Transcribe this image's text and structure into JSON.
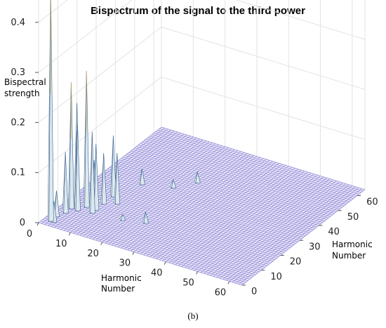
{
  "panel_label": "(b)",
  "chart_data": {
    "type": "surface3d",
    "title": "Bispectrum of the signal to the third power",
    "zlabel_lines": [
      "Bispectral",
      "strength"
    ],
    "xlabel_lines": [
      "Harmonic",
      "Number"
    ],
    "ylabel_lines": [
      "Harmonic",
      "Number"
    ],
    "xlim": [
      0,
      64
    ],
    "ylim": [
      0,
      64
    ],
    "zlim": [
      0,
      0.45
    ],
    "x_ticks": [
      0,
      10,
      20,
      30,
      40,
      50,
      60
    ],
    "y_ticks": [
      0,
      10,
      20,
      30,
      40,
      50,
      60
    ],
    "z_ticks": [
      0,
      0.1,
      0.2,
      0.3,
      0.4
    ],
    "grid": true,
    "surface_color": "#8e86d8",
    "peak_color": "#f2f2ea",
    "peaks": [
      {
        "x": 2,
        "y": 3,
        "z": 0.46
      },
      {
        "x": 3,
        "y": 3,
        "z": 0.04
      },
      {
        "x": 2,
        "y": 6,
        "z": 0.05
      },
      {
        "x": 3,
        "y": 9,
        "z": 0.12
      },
      {
        "x": 3,
        "y": 12,
        "z": 0.25
      },
      {
        "x": 3,
        "y": 15,
        "z": 0.2
      },
      {
        "x": 5,
        "y": 12,
        "z": 0.17
      },
      {
        "x": 6,
        "y": 15,
        "z": 0.27
      },
      {
        "x": 6,
        "y": 19,
        "z": 0.08
      },
      {
        "x": 9,
        "y": 15,
        "z": 0.13
      },
      {
        "x": 9,
        "y": 19,
        "z": 0.1
      },
      {
        "x": 9,
        "y": 24,
        "z": 0.12
      },
      {
        "x": 12,
        "y": 21,
        "z": 0.1
      },
      {
        "x": 9,
        "y": 13,
        "z": 0.16
      },
      {
        "x": 12,
        "y": 34,
        "z": 0.03
      },
      {
        "x": 20,
        "y": 37,
        "z": 0.015
      },
      {
        "x": 24,
        "y": 43,
        "z": 0.02
      },
      {
        "x": 24,
        "y": 16,
        "z": 0.02
      },
      {
        "x": 18,
        "y": 14,
        "z": 0.01
      }
    ]
  }
}
